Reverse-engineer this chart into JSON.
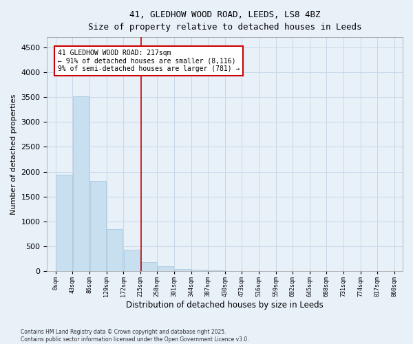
{
  "title_line1": "41, GLEDHOW WOOD ROAD, LEEDS, LS8 4BZ",
  "title_line2": "Size of property relative to detached houses in Leeds",
  "xlabel": "Distribution of detached houses by size in Leeds",
  "ylabel": "Number of detached properties",
  "bar_color": "#c8dff0",
  "bar_edge_color": "#a0c4e0",
  "bin_edges": [
    0,
    43,
    86,
    129,
    172,
    215,
    258,
    301,
    344,
    387,
    430,
    473,
    516,
    559,
    602,
    645,
    688,
    731,
    774,
    817,
    860
  ],
  "bar_heights": [
    1940,
    3520,
    1820,
    850,
    430,
    190,
    100,
    55,
    30,
    15,
    8,
    5,
    3,
    2,
    1,
    1,
    0,
    0,
    0,
    0
  ],
  "property_size": 217,
  "annotation_text": "41 GLEDHOW WOOD ROAD: 217sqm\n← 91% of detached houses are smaller (8,116)\n9% of semi-detached houses are larger (781) →",
  "annotation_box_color": "#ffffff",
  "annotation_box_edge": "#cc0000",
  "vline_color": "#cc0000",
  "ylim": [
    0,
    4700
  ],
  "yticks": [
    0,
    500,
    1000,
    1500,
    2000,
    2500,
    3000,
    3500,
    4000,
    4500
  ],
  "grid_color": "#c8d8e8",
  "bg_color": "#e8f0f8",
  "footer_line1": "Contains HM Land Registry data © Crown copyright and database right 2025.",
  "footer_line2": "Contains public sector information licensed under the Open Government Licence v3.0."
}
